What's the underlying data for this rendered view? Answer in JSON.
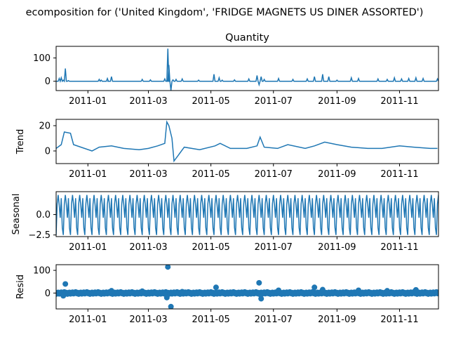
{
  "figure": {
    "title": "ecomposition for ('United Kingdom', 'FRIDGE MAGNETS US DINER ASSORTED')"
  },
  "colors": {
    "series": "#1f77b4",
    "axis": "#000000"
  },
  "chart_data": [
    {
      "type": "line",
      "panel": "observed",
      "title": "Quantity",
      "ylabel": "",
      "x_range": [
        "2010-12-01",
        "2011-12-09"
      ],
      "ylim": [
        -40,
        150
      ],
      "yticks": [
        0,
        100
      ],
      "xticks": [
        "2011-01",
        "2011-03",
        "2011-05",
        "2011-07",
        "2011-09",
        "2011-11"
      ],
      "x": [
        "2010-12-01",
        "2010-12-04",
        "2010-12-06",
        "2010-12-08",
        "2010-12-10",
        "2010-12-13",
        "2010-12-31",
        "2011-01-12",
        "2011-01-14",
        "2011-01-20",
        "2011-01-21",
        "2011-01-24",
        "2011-02-23",
        "2011-03-03",
        "2011-03-17",
        "2011-03-20",
        "2011-03-21",
        "2011-03-23",
        "2011-03-25",
        "2011-03-28",
        "2011-04-03",
        "2011-04-19",
        "2011-05-04",
        "2011-05-06",
        "2011-05-09",
        "2011-05-12",
        "2011-05-24",
        "2011-06-07",
        "2011-06-15",
        "2011-06-17",
        "2011-06-19",
        "2011-06-22",
        "2011-07-06",
        "2011-07-20",
        "2011-08-03",
        "2011-08-10",
        "2011-08-18",
        "2011-08-24",
        "2011-09-01",
        "2011-09-15",
        "2011-09-22",
        "2011-10-11",
        "2011-10-20",
        "2011-10-27",
        "2011-11-03",
        "2011-11-10",
        "2011-11-17",
        "2011-11-24",
        "2011-12-08"
      ],
      "y": [
        0,
        12,
        15,
        5,
        55,
        3,
        0,
        8,
        5,
        12,
        0,
        20,
        8,
        6,
        10,
        140,
        70,
        -40,
        6,
        8,
        10,
        5,
        30,
        0,
        15,
        5,
        6,
        10,
        25,
        -15,
        20,
        8,
        12,
        8,
        10,
        20,
        30,
        20,
        5,
        15,
        12,
        10,
        8,
        15,
        10,
        12,
        15,
        12,
        10
      ]
    },
    {
      "type": "line",
      "panel": "trend",
      "title": "",
      "ylabel": "Trend",
      "x_range": [
        "2010-12-01",
        "2011-12-09"
      ],
      "ylim": [
        -10,
        25
      ],
      "yticks": [
        0,
        20
      ],
      "xticks": [
        "2011-01",
        "2011-03",
        "2011-05",
        "2011-07",
        "2011-09",
        "2011-11"
      ],
      "x": [
        "2010-12-01",
        "2010-12-06",
        "2010-12-09",
        "2010-12-15",
        "2010-12-18",
        "2011-01-05",
        "2011-01-12",
        "2011-01-24",
        "2011-02-05",
        "2011-02-20",
        "2011-03-01",
        "2011-03-10",
        "2011-03-17",
        "2011-03-19",
        "2011-03-21",
        "2011-03-24",
        "2011-03-26",
        "2011-04-05",
        "2011-04-20",
        "2011-05-05",
        "2011-05-10",
        "2011-05-20",
        "2011-06-05",
        "2011-06-15",
        "2011-06-18",
        "2011-06-22",
        "2011-07-05",
        "2011-07-15",
        "2011-08-01",
        "2011-08-10",
        "2011-08-20",
        "2011-09-01",
        "2011-09-15",
        "2011-10-01",
        "2011-10-15",
        "2011-11-01",
        "2011-11-15",
        "2011-12-01",
        "2011-12-08"
      ],
      "y": [
        2,
        5,
        15,
        14,
        5,
        0,
        3,
        4,
        2,
        1,
        2,
        4,
        6,
        23,
        20,
        10,
        -8,
        3,
        1,
        4,
        6,
        2,
        2,
        4,
        11,
        3,
        2,
        5,
        2,
        4,
        7,
        5,
        3,
        2,
        2,
        4,
        3,
        2,
        2
      ]
    },
    {
      "type": "line",
      "panel": "seasonal",
      "title": "",
      "ylabel": "Seasonal",
      "x_range": [
        "2010-12-01",
        "2011-12-09"
      ],
      "ylim": [
        -2.7,
        2.8
      ],
      "yticks": [
        -2.5,
        0.0
      ],
      "xticks": [
        "2011-01",
        "2011-03",
        "2011-05",
        "2011-07",
        "2011-09",
        "2011-11"
      ],
      "period_days": 7,
      "cycle": [
        -2.5,
        1.3,
        2.4,
        1.2,
        -0.4,
        2.0,
        -1.6
      ]
    },
    {
      "type": "scatter",
      "panel": "resid",
      "title": "",
      "ylabel": "Resid",
      "x_range": [
        "2010-12-01",
        "2011-12-09"
      ],
      "ylim": [
        -70,
        125
      ],
      "yticks": [
        0,
        100
      ],
      "xticks": [
        "2011-01",
        "2011-03",
        "2011-05",
        "2011-07",
        "2011-09",
        "2011-11"
      ],
      "x": [
        "2010-12-08",
        "2010-12-10",
        "2011-03-20",
        "2011-03-23",
        "2011-05-06",
        "2011-06-17",
        "2011-06-19",
        "2011-08-10",
        "2011-08-18",
        "2011-03-19",
        "2011-02-23",
        "2011-07-06",
        "2011-10-20",
        "2011-11-17",
        "2011-01-24",
        "2011-04-03",
        "2011-09-22"
      ],
      "y": [
        -12,
        40,
        115,
        -60,
        25,
        45,
        -25,
        25,
        15,
        -20,
        8,
        12,
        10,
        14,
        10,
        6,
        12
      ],
      "baseline_dense": true
    }
  ]
}
